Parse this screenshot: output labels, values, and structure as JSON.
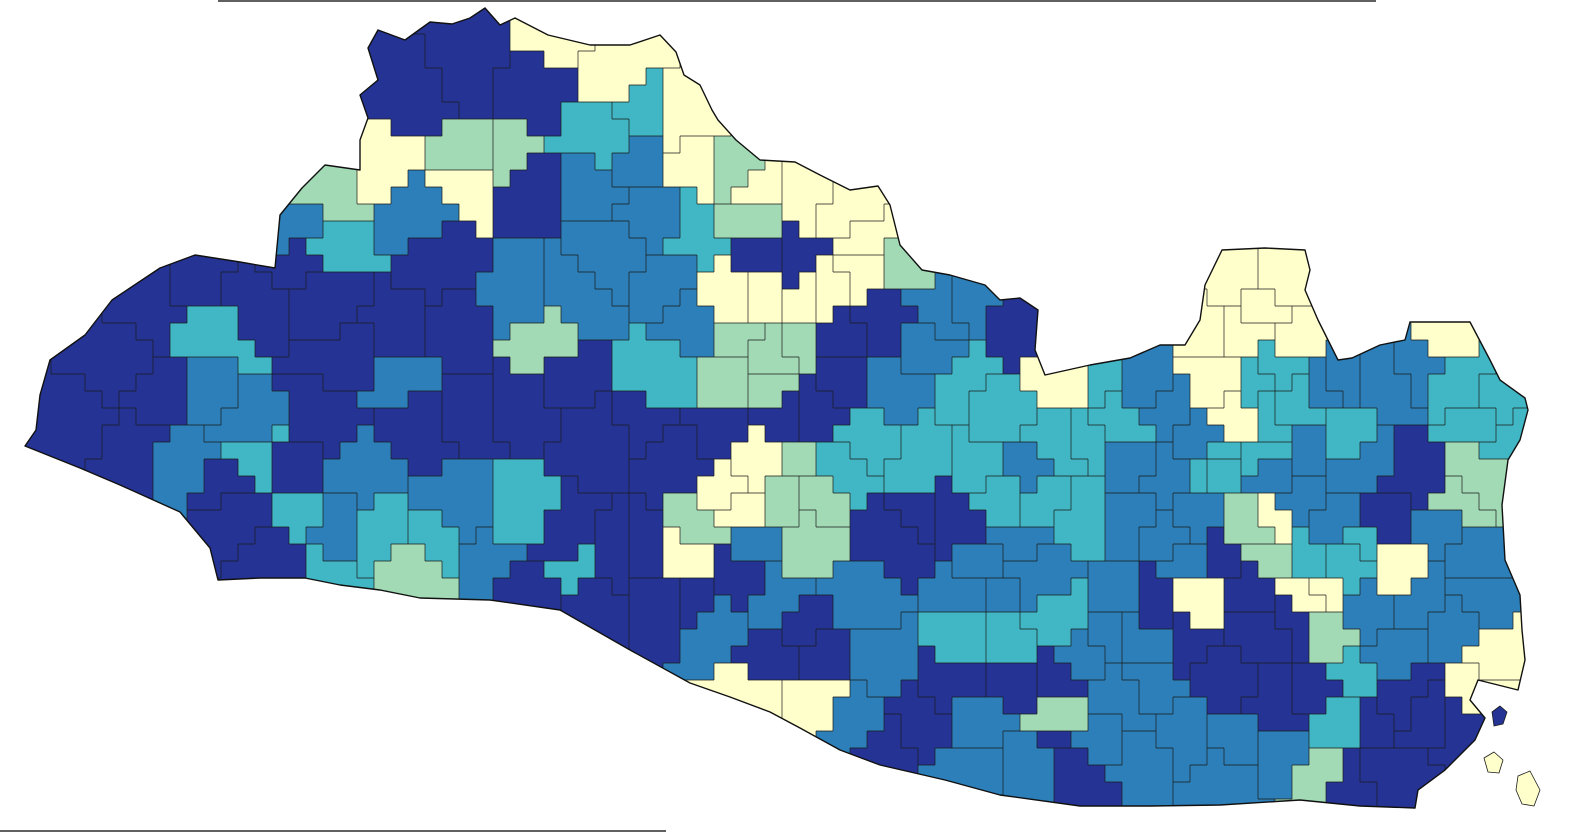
{
  "palette": {
    "class_1": "#ffffcc",
    "class_2": "#a1dab4",
    "class_3": "#41b6c4",
    "class_4": "#2c7fb8",
    "class_5": "#253494"
  },
  "map": {
    "region": "El Salvador",
    "units": "municipalities",
    "classes": 5,
    "legend_shown": false
  }
}
